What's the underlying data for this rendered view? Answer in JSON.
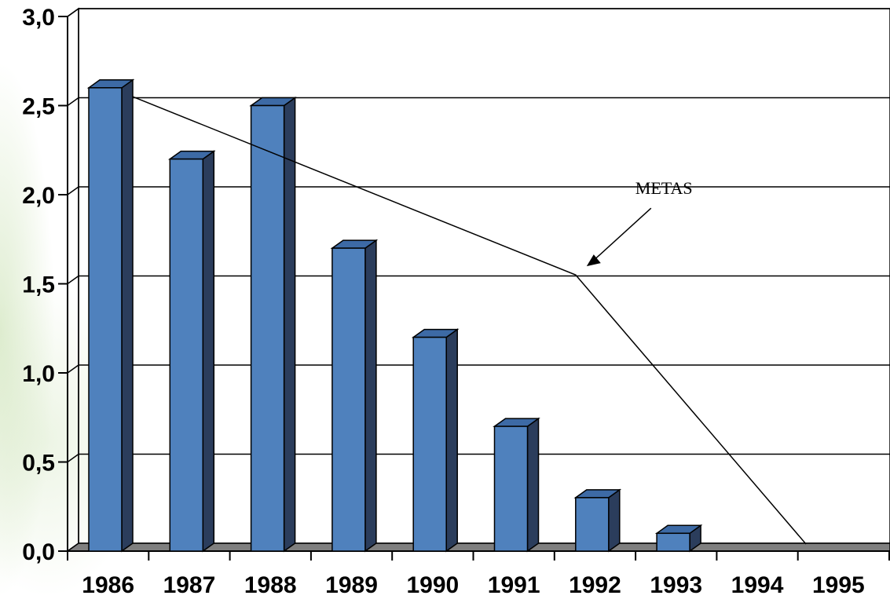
{
  "chart_data": {
    "type": "bar",
    "categories": [
      "1986",
      "1987",
      "1988",
      "1989",
      "1990",
      "1991",
      "1992",
      "1993",
      "1994",
      "1995"
    ],
    "values": [
      2.6,
      2.2,
      2.5,
      1.7,
      1.2,
      0.7,
      0.3,
      0.1,
      0,
      0
    ],
    "ylim": [
      0,
      3
    ],
    "yticks": [
      "0,0",
      "0,5",
      "1,0",
      "1,5",
      "2,0",
      "2,5",
      "3,0"
    ],
    "ytick_values": [
      0,
      0.5,
      1,
      1.5,
      2,
      2.5,
      3
    ],
    "grid": true,
    "legend": "none",
    "bar_color": "#4f81bd",
    "bar_side_color": "#2b3d5c",
    "bar_top_color": "#3d6aa5",
    "floor_color": "#7f7f7f",
    "target_line": {
      "points": [
        {
          "x": "1986",
          "y": 2.55
        },
        {
          "x": "1992",
          "y": 1.55
        },
        {
          "x": "1995",
          "y": 0
        }
      ]
    },
    "annotations": [
      {
        "text": "METAS",
        "points_to": {
          "x": "1992",
          "y": 1.55
        }
      }
    ]
  }
}
